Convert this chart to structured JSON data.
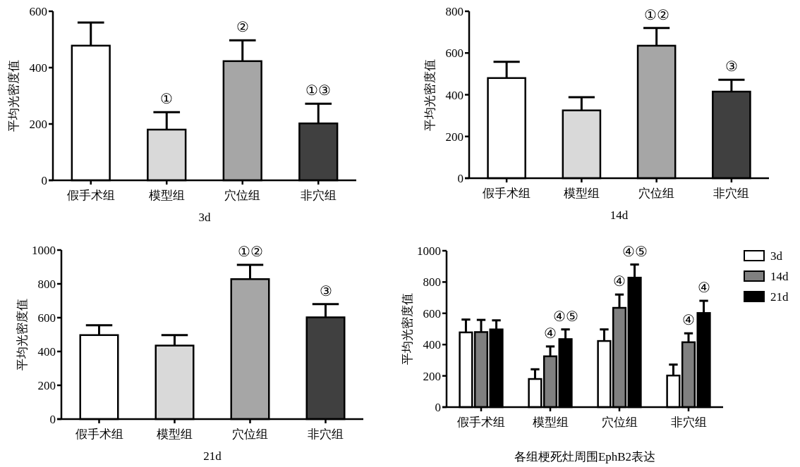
{
  "chart_data": [
    {
      "type": "bar",
      "xlabel": "3d",
      "ylabel": "平均光密度值",
      "categories": [
        "假手术组",
        "模型组",
        "穴位组",
        "非穴组"
      ],
      "values": [
        478,
        180,
        423,
        202
      ],
      "colors": [
        "#ffffff",
        "#d9d9d9",
        "#a6a6a6",
        "#404040"
      ],
      "errors": [
        [
          478,
          560
        ],
        [
          180,
          242
        ],
        [
          423,
          497
        ],
        [
          202,
          272
        ]
      ],
      "ylim": [
        0,
        600
      ],
      "yticks": [
        0,
        200,
        400,
        600
      ],
      "grid": false,
      "annotations": [
        {
          "text": "①",
          "x": "模型组",
          "y": 242
        },
        {
          "text": "②",
          "x": "穴位组",
          "y": 497
        },
        {
          "text": "①③",
          "x": "非穴组",
          "y": 272
        }
      ]
    },
    {
      "type": "bar",
      "xlabel": "14d",
      "ylabel": "平均光密度值",
      "categories": [
        "假手术组",
        "模型组",
        "穴位组",
        "非穴组"
      ],
      "values": [
        480,
        325,
        635,
        415
      ],
      "colors": [
        "#ffffff",
        "#d9d9d9",
        "#a6a6a6",
        "#404040"
      ],
      "errors": [
        [
          480,
          558
        ],
        [
          325,
          388
        ],
        [
          635,
          720
        ],
        [
          415,
          472
        ]
      ],
      "ylim": [
        0,
        800
      ],
      "yticks": [
        0,
        200,
        400,
        600,
        800
      ],
      "grid": false,
      "annotations": [
        {
          "text": "①②",
          "x": "穴位组",
          "y": 720
        },
        {
          "text": "③",
          "x": "非穴组",
          "y": 472
        }
      ]
    },
    {
      "type": "bar",
      "xlabel": "21d",
      "ylabel": "平均光密度值",
      "categories": [
        "假手术组",
        "模型组",
        "穴位组",
        "非穴组"
      ],
      "values": [
        497,
        435,
        828,
        602
      ],
      "colors": [
        "#ffffff",
        "#d9d9d9",
        "#a6a6a6",
        "#404040"
      ],
      "errors": [
        [
          497,
          555
        ],
        [
          435,
          497
        ],
        [
          828,
          912
        ],
        [
          602,
          680
        ]
      ],
      "ylim": [
        0,
        1000
      ],
      "yticks": [
        0,
        200,
        400,
        600,
        800,
        1000
      ],
      "grid": false,
      "annotations": [
        {
          "text": "①②",
          "x": "穴位组",
          "y": 912
        },
        {
          "text": "③",
          "x": "非穴组",
          "y": 680
        }
      ]
    },
    {
      "type": "bar",
      "xlabel": "各组梗死灶周围EphB2表达",
      "ylabel": "平均光密度值",
      "categories": [
        "假手术组",
        "模型组",
        "穴位组",
        "非穴组"
      ],
      "ylim": [
        0,
        1000
      ],
      "yticks": [
        0,
        200,
        400,
        600,
        800,
        1000
      ],
      "grid": false,
      "legend": "top right",
      "series": [
        {
          "name": "3d",
          "color": "#ffffff",
          "values": [
            478,
            180,
            423,
            202
          ],
          "errors": [
            [
              478,
              560
            ],
            [
              180,
              242
            ],
            [
              423,
              497
            ],
            [
              202,
              272
            ]
          ]
        },
        {
          "name": "14d",
          "color": "#808080",
          "values": [
            480,
            325,
            635,
            415
          ],
          "errors": [
            [
              480,
              558
            ],
            [
              325,
              388
            ],
            [
              635,
              720
            ],
            [
              415,
              472
            ]
          ]
        },
        {
          "name": "21d",
          "color": "#000000",
          "values": [
            497,
            435,
            828,
            602
          ],
          "errors": [
            [
              497,
              555
            ],
            [
              435,
              497
            ],
            [
              828,
              912
            ],
            [
              602,
              680
            ]
          ]
        }
      ],
      "annotations": [
        {
          "text": "④",
          "x": "模型组",
          "y": 388
        },
        "④⑤",
        {
          "text": "④",
          "x": "穴位组",
          "y": 720
        },
        "④⑤",
        {
          "text": "④",
          "x": "非穴组",
          "y": 472
        },
        "④"
      ]
    }
  ]
}
